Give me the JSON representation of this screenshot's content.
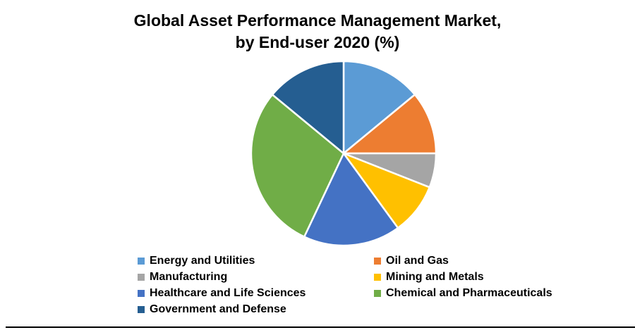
{
  "title": {
    "line1": "Global Asset Performance Management Market,",
    "line2": "by End-user 2020 (%)"
  },
  "legend": {
    "position": "bottom",
    "columns": 2,
    "items": [
      {
        "label": "Energy and Utilities",
        "color": "#5B9BD5"
      },
      {
        "label": "Oil and Gas",
        "color": "#ED7D31"
      },
      {
        "label": "Manufacturing",
        "color": "#A5A5A5"
      },
      {
        "label": "Mining and Metals",
        "color": "#FFC000"
      },
      {
        "label": "Healthcare and Life Sciences",
        "color": "#4472C4"
      },
      {
        "label": "Chemical and Pharmaceuticals",
        "color": "#70AD47"
      },
      {
        "label": "Government and Defense",
        "color": "#255E91"
      }
    ]
  },
  "chart_data": {
    "type": "pie",
    "title": "Global Asset Performance Management Market, by End-user 2020 (%)",
    "categories": [
      "Energy and Utilities",
      "Oil and Gas",
      "Manufacturing",
      "Mining and Metals",
      "Healthcare and Life Sciences",
      "Chemical and Pharmaceuticals",
      "Government and Defense"
    ],
    "values": [
      14,
      11,
      6,
      9,
      17,
      29,
      14
    ],
    "unit": "%",
    "colors": [
      "#5B9BD5",
      "#ED7D31",
      "#A5A5A5",
      "#FFC000",
      "#4472C4",
      "#70AD47",
      "#255E91"
    ],
    "start_angle_deg": 0,
    "direction": "clockwise",
    "slice_gap_color": "#FFFFFF",
    "data_labels": false,
    "legend_position": "bottom"
  },
  "colors": {
    "background": "#FFFFFF",
    "title_text": "#000000",
    "legend_text": "#000000",
    "bottom_rule": "#000000"
  }
}
